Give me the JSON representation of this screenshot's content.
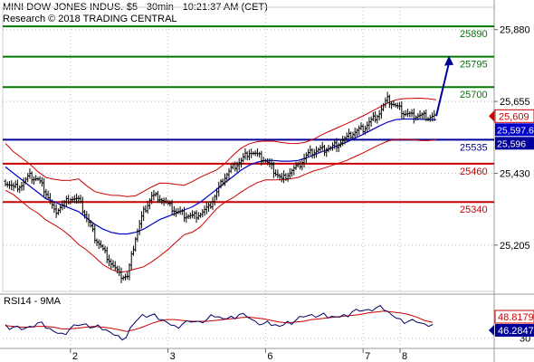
{
  "header": {
    "title": "MINI DOW JONES INDUS.-$5 - 30min - 10:21:37 AM (CET)",
    "subtitle": "Research © 2018 TRADING CENTRAL"
  },
  "colors": {
    "support_resistance_green": "#007700",
    "resistance_red": "#cc0000",
    "pivot_blue": "#000099",
    "bollinger_red": "#cc0000",
    "moving_average_blue": "#0000cc",
    "price_bars": "#000000",
    "rsi_line": "#000066",
    "rsi_ma": "#cc0000",
    "current_price_box": "#cc0000",
    "ma_box": "#0000cc",
    "pivot_box": "#000099",
    "rsi_ma_box": "#cc0000",
    "rsi_box": "#000099"
  },
  "chart_data": [
    {
      "type": "line",
      "title": "MINI DOW JONES INDUS.-$5 - 30min",
      "ylim": [
        25060,
        25950
      ],
      "y_ticks": [
        "25,880",
        "25,655",
        "25,430",
        "25,205"
      ],
      "x_ticks": [
        "2",
        "3",
        "6",
        "7",
        "8"
      ],
      "levels": [
        {
          "value": 25890,
          "label": "25890",
          "color": "green"
        },
        {
          "value": 25795,
          "label": "25795",
          "color": "green"
        },
        {
          "value": 25700,
          "label": "25700",
          "color": "green"
        },
        {
          "value": 25535,
          "label": "25535",
          "color": "blue"
        },
        {
          "value": 25460,
          "label": "25460",
          "color": "red"
        },
        {
          "value": 25340,
          "label": "25340",
          "color": "red"
        }
      ],
      "price_labels": [
        {
          "label": "25,609",
          "value": 25609,
          "kind": "current"
        },
        {
          "label": "25,597.6",
          "value": 25597.6,
          "kind": "ma"
        },
        {
          "label": "25,596",
          "value": 25596,
          "kind": "pivot"
        }
      ],
      "series": [
        {
          "values": [
            25405,
            25385,
            25395,
            25420,
            25410,
            25370,
            25310,
            25330,
            25355,
            25345,
            25290,
            25230,
            25190,
            25150,
            25110,
            25105,
            25230,
            25310,
            25360,
            25355,
            25330,
            25310,
            25300,
            25295,
            25305,
            25320,
            25370,
            25420,
            25450,
            25470,
            25500,
            25485,
            25470,
            25440,
            25410,
            25435,
            25450,
            25485,
            25500,
            25505,
            25510,
            25525,
            25540,
            25560,
            25570,
            25595,
            25620,
            25660,
            25640,
            25620,
            25610,
            25612,
            25608,
            25609
          ]
        },
        {
          "values": [
            25450,
            25430,
            25410,
            25390,
            25370,
            25350,
            25340,
            25330,
            25320,
            25310,
            25290,
            25270,
            25255,
            25245,
            25240,
            25240,
            25245,
            25255,
            25270,
            25285,
            25295,
            25305,
            25315,
            25325,
            25340,
            25360,
            25380,
            25400,
            25420,
            25440,
            25455,
            25465,
            25470,
            25470,
            25468,
            25468,
            25470,
            25478,
            25488,
            25498,
            25508,
            25518,
            25528,
            25540,
            25552,
            25565,
            25578,
            25590,
            25598,
            25600,
            25600,
            25599,
            25598,
            25597.6
          ]
        }
      ],
      "annotation": {
        "type": "arrow",
        "from_value": 25609,
        "to_value": 25795
      }
    },
    {
      "type": "line",
      "title": "RSI14 - 9MA",
      "ylim": [
        20,
        80
      ],
      "y_ticks": [
        "30"
      ],
      "value_labels": [
        {
          "label": "48.8179",
          "value": 48.8179,
          "kind": "ma"
        },
        {
          "label": "46.2847",
          "value": 46.2847,
          "kind": "rsi"
        }
      ],
      "series": [
        {
          "values": [
            46,
            43,
            40,
            44,
            48,
            42,
            38,
            36,
            41,
            45,
            47,
            43,
            40,
            37,
            33,
            31,
            48,
            58,
            57,
            52,
            49,
            45,
            47,
            49,
            50,
            52,
            55,
            53,
            56,
            58,
            55,
            50,
            47,
            45,
            44,
            50,
            51,
            55,
            58,
            57,
            54,
            55,
            58,
            61,
            62,
            64,
            66,
            63,
            57,
            53,
            50,
            49,
            47,
            46.2847
          ]
        },
        {
          "values": [
            45,
            44,
            43,
            43,
            44,
            44,
            43,
            41,
            41,
            42,
            43,
            44,
            43,
            42,
            40,
            38,
            40,
            43,
            47,
            50,
            52,
            52,
            51,
            50,
            50,
            50,
            51,
            52,
            53,
            54,
            55,
            54,
            53,
            51,
            49,
            48,
            49,
            50,
            52,
            53,
            54,
            55,
            56,
            57,
            58,
            60,
            61,
            62,
            61,
            60,
            58,
            55,
            51,
            48.8179
          ]
        }
      ]
    }
  ]
}
